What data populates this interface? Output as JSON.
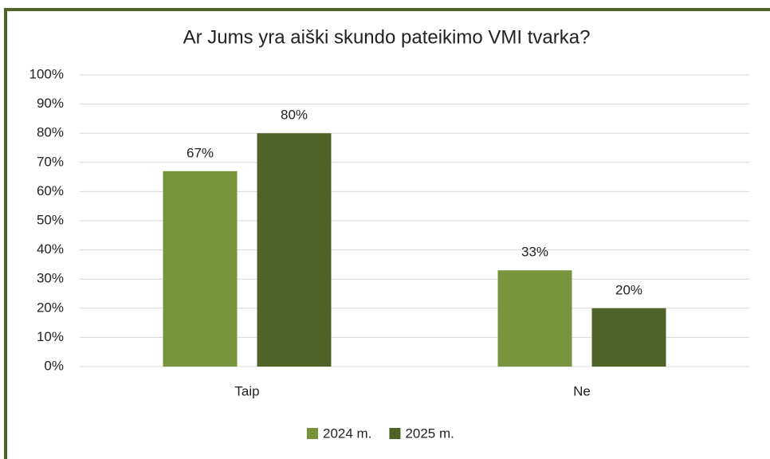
{
  "chart_data": {
    "type": "bar",
    "title": "Ar Jums yra aiški skundo pateikimo VMI tvarka?",
    "categories": [
      "Taip",
      "Ne"
    ],
    "series": [
      {
        "name": "2024 m.",
        "color": "#77933c",
        "values": [
          67,
          33
        ],
        "value_labels": [
          "67%",
          "33%"
        ]
      },
      {
        "name": "2025 m.",
        "color": "#4f6228",
        "values": [
          80,
          20
        ],
        "value_labels": [
          "80%",
          "20%"
        ]
      }
    ],
    "ylim": [
      0,
      100
    ],
    "yticks": [
      {
        "value": 0,
        "label": "0%"
      },
      {
        "value": 10,
        "label": "10%"
      },
      {
        "value": 20,
        "label": "20%"
      },
      {
        "value": 30,
        "label": "30%"
      },
      {
        "value": 40,
        "label": "40%"
      },
      {
        "value": 50,
        "label": "50%"
      },
      {
        "value": 60,
        "label": "60%"
      },
      {
        "value": 70,
        "label": "70%"
      },
      {
        "value": 80,
        "label": "80%"
      },
      {
        "value": 90,
        "label": "90%"
      },
      {
        "value": 100,
        "label": "100%"
      }
    ],
    "grid": true,
    "legend": "bottom"
  }
}
